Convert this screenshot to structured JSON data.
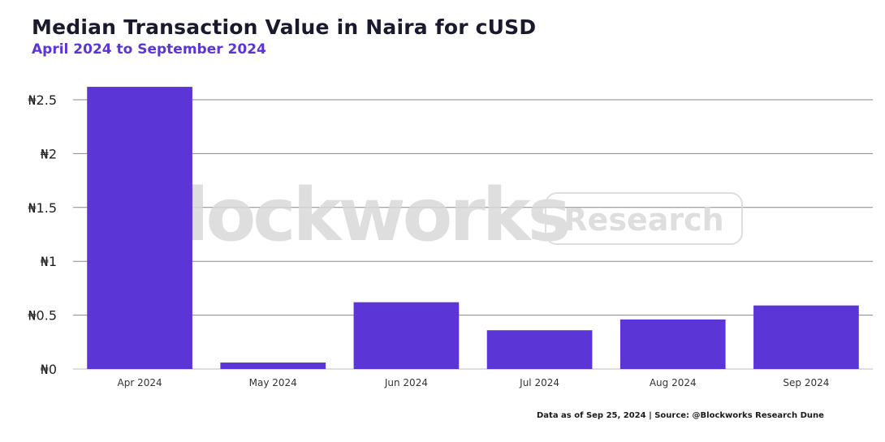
{
  "header": {
    "title": "Median Transaction Value in Naira for cUSD",
    "subtitle": "April 2024 to September 2024"
  },
  "footer": {
    "source": "Data as of Sep 25, 2024 | Source: @Blockworks Research Dune"
  },
  "watermark": {
    "brand": "Blockworks",
    "tag": "Research"
  },
  "colors": {
    "bar": "#5b35d5",
    "grid": "#888888",
    "watermark": "#d9d9d9"
  },
  "chart_data": {
    "type": "bar",
    "title": "Median Transaction Value in Naira for cUSD",
    "subtitle": "April 2024 to September 2024",
    "categories": [
      "Apr 2024",
      "May 2024",
      "Jun 2024",
      "Jul 2024",
      "Aug 2024",
      "Sep 2024"
    ],
    "values": [
      2.62,
      0.06,
      0.62,
      0.36,
      0.46,
      0.59
    ],
    "ylim": [
      0,
      2.5
    ],
    "yticks": [
      0,
      0.5,
      1,
      1.5,
      2,
      2.5
    ],
    "ytick_labels": [
      "₦0",
      "₦0.5",
      "₦1",
      "₦1.5",
      "₦2",
      "₦2.5"
    ],
    "xlabel": "",
    "ylabel": "",
    "grid": true,
    "legend": "none"
  }
}
